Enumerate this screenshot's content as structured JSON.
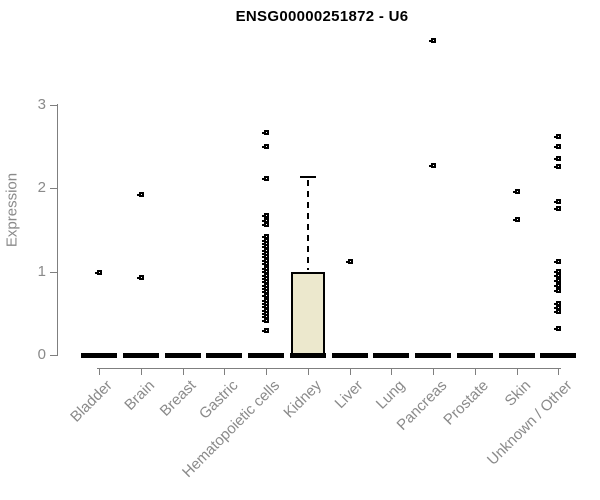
{
  "title": "ENSG00000251872 - U6",
  "chart_data": {
    "type": "boxplot",
    "title": "ENSG00000251872 - U6",
    "xlabel": "",
    "ylabel": "Expression",
    "ylim": [
      0,
      3
    ],
    "yticks": [
      0,
      1,
      2,
      3
    ],
    "grid": false,
    "legend": "none",
    "categories": [
      "Bladder",
      "Brain",
      "Breast",
      "Gastric",
      "Hematopoietic cells",
      "Kidney",
      "Liver",
      "Lung",
      "Pancreas",
      "Prostate",
      "Skin",
      "Unknown / Other"
    ],
    "boxes": [
      {
        "category": "Bladder",
        "q1": 0,
        "median": 0,
        "q3": 0,
        "whisker_low": 0,
        "whisker_high": 0
      },
      {
        "category": "Brain",
        "q1": 0,
        "median": 0,
        "q3": 0,
        "whisker_low": 0,
        "whisker_high": 0
      },
      {
        "category": "Breast",
        "q1": 0,
        "median": 0,
        "q3": 0,
        "whisker_low": 0,
        "whisker_high": 0
      },
      {
        "category": "Gastric",
        "q1": 0,
        "median": 0,
        "q3": 0,
        "whisker_low": 0,
        "whisker_high": 0
      },
      {
        "category": "Hematopoietic cells",
        "q1": 0,
        "median": 0,
        "q3": 0,
        "whisker_low": 0,
        "whisker_high": 0
      },
      {
        "category": "Kidney",
        "q1": 0,
        "median": 0,
        "q3": 1.0,
        "whisker_low": 0,
        "whisker_high": 2.15
      },
      {
        "category": "Liver",
        "q1": 0,
        "median": 0,
        "q3": 0,
        "whisker_low": 0,
        "whisker_high": 0
      },
      {
        "category": "Lung",
        "q1": 0,
        "median": 0,
        "q3": 0,
        "whisker_low": 0,
        "whisker_high": 0
      },
      {
        "category": "Pancreas",
        "q1": 0,
        "median": 0,
        "q3": 0,
        "whisker_low": 0,
        "whisker_high": 0
      },
      {
        "category": "Prostate",
        "q1": 0,
        "median": 0,
        "q3": 0,
        "whisker_low": 0,
        "whisker_high": 0
      },
      {
        "category": "Skin",
        "q1": 0,
        "median": 0,
        "q3": 0,
        "whisker_low": 0,
        "whisker_high": 0
      },
      {
        "category": "Unknown / Other",
        "q1": 0,
        "median": 0,
        "q3": 0,
        "whisker_low": 0,
        "whisker_high": 0
      }
    ],
    "outlier_points": [
      {
        "category": "Bladder",
        "values": [
          0.99
        ]
      },
      {
        "category": "Brain",
        "values": [
          1.93,
          0.93
        ]
      },
      {
        "category": "Breast",
        "values": []
      },
      {
        "category": "Gastric",
        "values": []
      },
      {
        "category": "Hematopoietic cells",
        "values": [
          2.67,
          2.5,
          2.12,
          1.67,
          1.62,
          1.57,
          1.42,
          1.38,
          1.34,
          1.3,
          1.26,
          1.22,
          1.18,
          1.14,
          1.1,
          1.04,
          1.0,
          0.96,
          0.92,
          0.88,
          0.84,
          0.8,
          0.76,
          0.72,
          0.66,
          0.62,
          0.58,
          0.54,
          0.5,
          0.46,
          0.42,
          0.3
        ]
      },
      {
        "category": "Kidney",
        "values": []
      },
      {
        "category": "Liver",
        "values": [
          1.12
        ]
      },
      {
        "category": "Lung",
        "values": []
      },
      {
        "category": "Pancreas",
        "values": [
          3.77,
          2.27
        ]
      },
      {
        "category": "Prostate",
        "values": []
      },
      {
        "category": "Skin",
        "values": [
          1.96,
          1.63
        ]
      },
      {
        "category": "Unknown / Other",
        "values": [
          2.62,
          2.5,
          2.36,
          2.26,
          1.84,
          1.76,
          1.12,
          1.0,
          0.95,
          0.9,
          0.84,
          0.78,
          0.62,
          0.57,
          0.52,
          0.32
        ]
      }
    ],
    "colors": {
      "box_fill": "#ece8cd",
      "box_border": "#000000",
      "median_bar": "#000000",
      "point": "#000000",
      "axis_line": "#7f7f7f",
      "tick_label": "#8a8a8a",
      "title": "#000000",
      "background": "#ffffff"
    }
  }
}
